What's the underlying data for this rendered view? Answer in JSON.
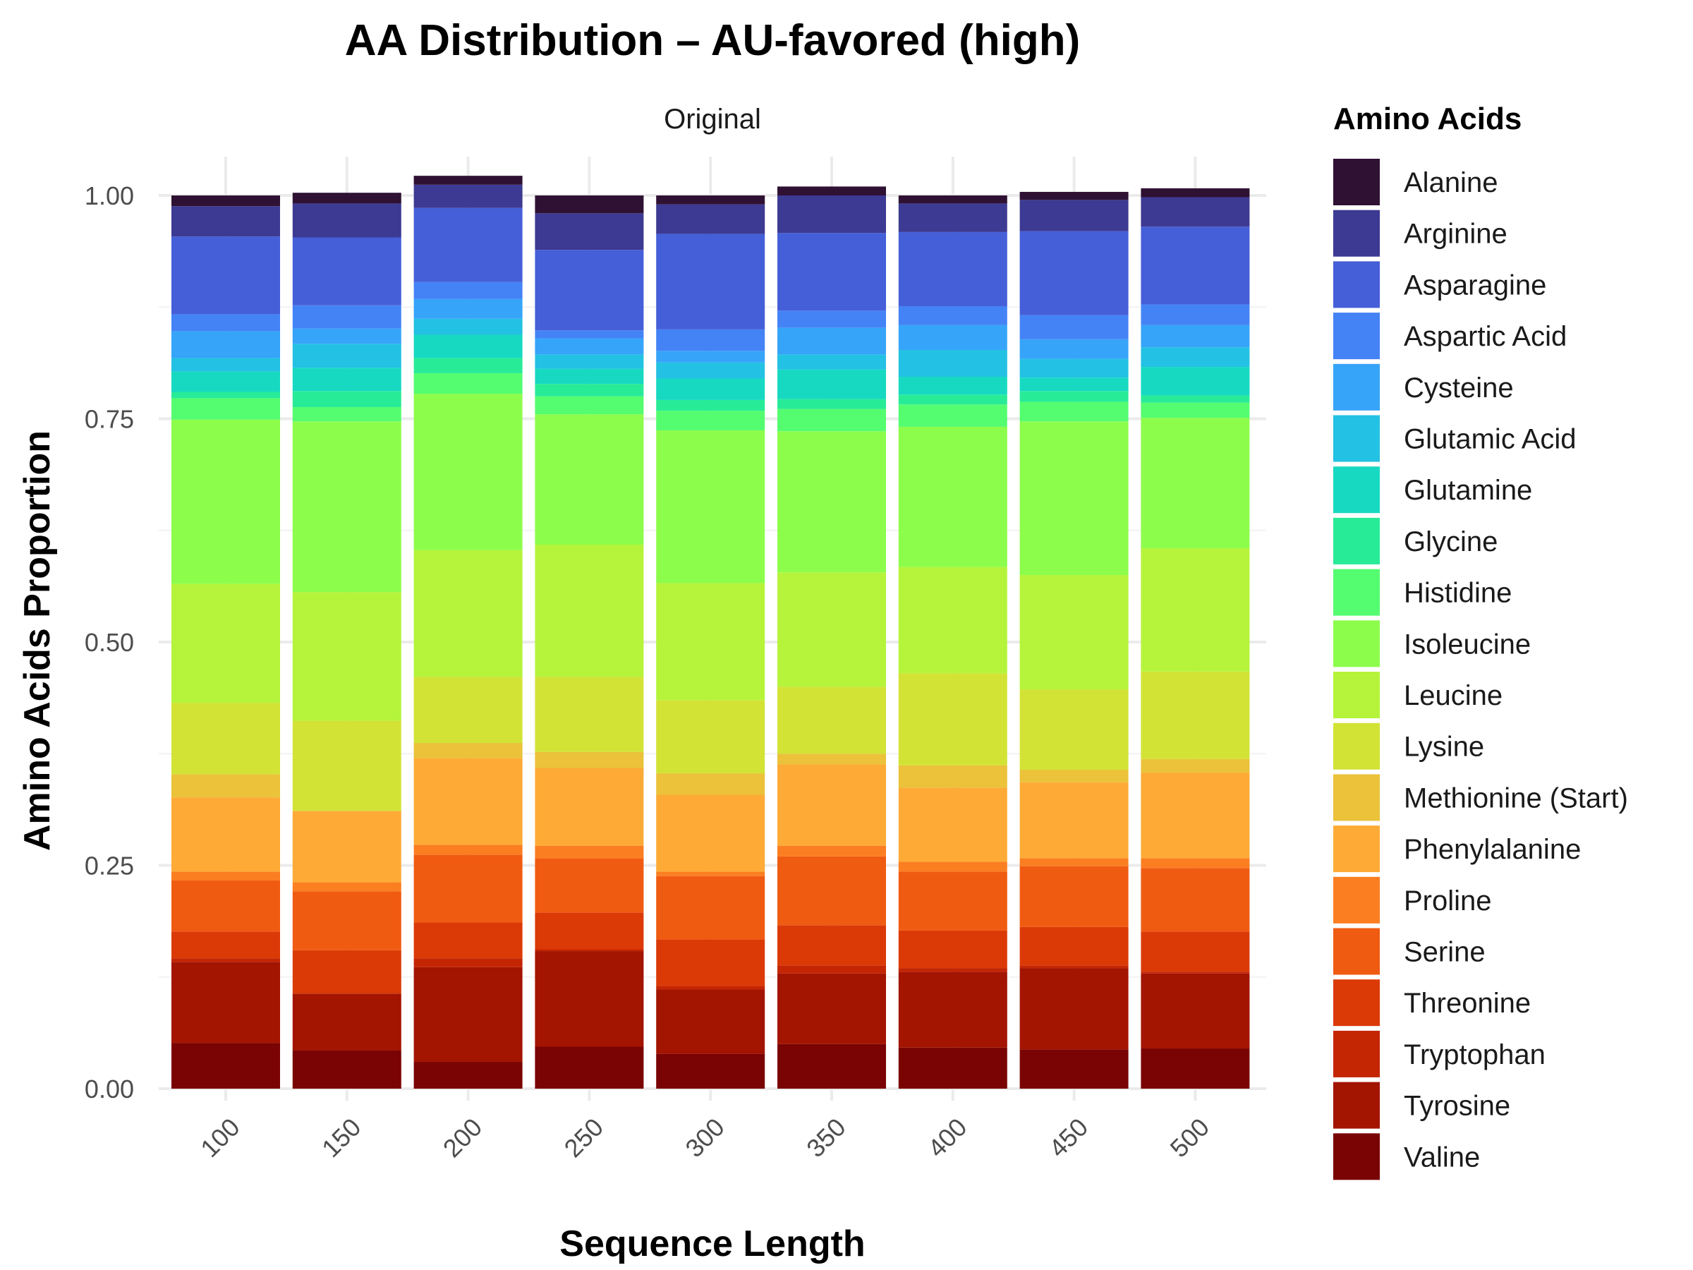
{
  "chart_data": {
    "type": "bar",
    "stacked": true,
    "title": "AA Distribution – AU-favored (high)",
    "facet": "Original",
    "xlabel": "Sequence Length",
    "ylabel": "Amino Acids Proportion",
    "legend_title": "Amino Acids",
    "legend_position": "right",
    "grid": true,
    "ylim": [
      0,
      1
    ],
    "yticks": [
      "0.00",
      "0.25",
      "0.50",
      "0.75",
      "1.00"
    ],
    "categories": [
      "100",
      "150",
      "200",
      "250",
      "300",
      "350",
      "400",
      "450",
      "500"
    ],
    "series": [
      {
        "name": "Valine",
        "color": "#7a0403",
        "values": [
          0.051,
          0.043,
          0.03,
          0.047,
          0.039,
          0.05,
          0.046,
          0.044,
          0.045
        ]
      },
      {
        "name": "Tyrosine",
        "color": "#a31401",
        "values": [
          0.091,
          0.063,
          0.106,
          0.107,
          0.072,
          0.079,
          0.085,
          0.091,
          0.084
        ]
      },
      {
        "name": "Tryptophan",
        "color": "#c42503",
        "values": [
          0.004,
          0.001,
          0.01,
          0.002,
          0.004,
          0.009,
          0.004,
          0.003,
          0.002
        ]
      },
      {
        "name": "Threonine",
        "color": "#db3a07",
        "values": [
          0.03,
          0.048,
          0.04,
          0.041,
          0.052,
          0.045,
          0.042,
          0.043,
          0.045
        ]
      },
      {
        "name": "Serine",
        "color": "#f05b12",
        "values": [
          0.057,
          0.066,
          0.076,
          0.061,
          0.071,
          0.077,
          0.066,
          0.068,
          0.071
        ]
      },
      {
        "name": "Proline",
        "color": "#fb7e21",
        "values": [
          0.01,
          0.01,
          0.011,
          0.014,
          0.005,
          0.012,
          0.011,
          0.009,
          0.011
        ]
      },
      {
        "name": "Phenylalanine",
        "color": "#fdab36",
        "values": [
          0.083,
          0.08,
          0.097,
          0.087,
          0.086,
          0.091,
          0.083,
          0.085,
          0.096
        ]
      },
      {
        "name": "Methionine (Start)",
        "color": "#ebc239",
        "values": [
          0.026,
          0.0,
          0.017,
          0.018,
          0.024,
          0.012,
          0.025,
          0.014,
          0.015
        ]
      },
      {
        "name": "Lysine",
        "color": "#d2e336",
        "values": [
          0.08,
          0.101,
          0.074,
          0.084,
          0.082,
          0.075,
          0.103,
          0.09,
          0.098
        ]
      },
      {
        "name": "Leucine",
        "color": "#b5f43a",
        "values": [
          0.133,
          0.144,
          0.142,
          0.148,
          0.131,
          0.128,
          0.119,
          0.128,
          0.138
        ]
      },
      {
        "name": "Isoleucine",
        "color": "#8dfd4b",
        "values": [
          0.184,
          0.191,
          0.175,
          0.146,
          0.171,
          0.158,
          0.157,
          0.172,
          0.146
        ]
      },
      {
        "name": "Histidine",
        "color": "#54fd70",
        "values": [
          0.024,
          0.016,
          0.023,
          0.02,
          0.022,
          0.025,
          0.025,
          0.022,
          0.017
        ]
      },
      {
        "name": "Glycine",
        "color": "#28eb98",
        "values": [
          0.007,
          0.018,
          0.017,
          0.014,
          0.012,
          0.011,
          0.011,
          0.012,
          0.008
        ]
      },
      {
        "name": "Glutamine",
        "color": "#17d9c2",
        "values": [
          0.023,
          0.026,
          0.026,
          0.017,
          0.024,
          0.033,
          0.02,
          0.015,
          0.032
        ]
      },
      {
        "name": "Glutamic Acid",
        "color": "#23c1e3",
        "values": [
          0.015,
          0.027,
          0.018,
          0.016,
          0.018,
          0.017,
          0.03,
          0.021,
          0.022
        ]
      },
      {
        "name": "Cysteine",
        "color": "#36a4f9",
        "values": [
          0.03,
          0.017,
          0.022,
          0.018,
          0.013,
          0.03,
          0.028,
          0.022,
          0.025
        ]
      },
      {
        "name": "Aspartic Acid",
        "color": "#4483f6",
        "values": [
          0.019,
          0.026,
          0.019,
          0.009,
          0.024,
          0.019,
          0.021,
          0.027,
          0.023
        ]
      },
      {
        "name": "Asparagine",
        "color": "#455fd8",
        "values": [
          0.087,
          0.076,
          0.083,
          0.09,
          0.107,
          0.087,
          0.083,
          0.094,
          0.087
        ]
      },
      {
        "name": "Arginine",
        "color": "#3d3a93",
        "values": [
          0.034,
          0.038,
          0.026,
          0.041,
          0.033,
          0.042,
          0.032,
          0.035,
          0.033
        ]
      },
      {
        "name": "Alanine",
        "color": "#2f1233",
        "values": [
          0.012,
          0.012,
          0.01,
          0.02,
          0.01,
          0.01,
          0.009,
          0.009,
          0.01
        ]
      }
    ]
  }
}
